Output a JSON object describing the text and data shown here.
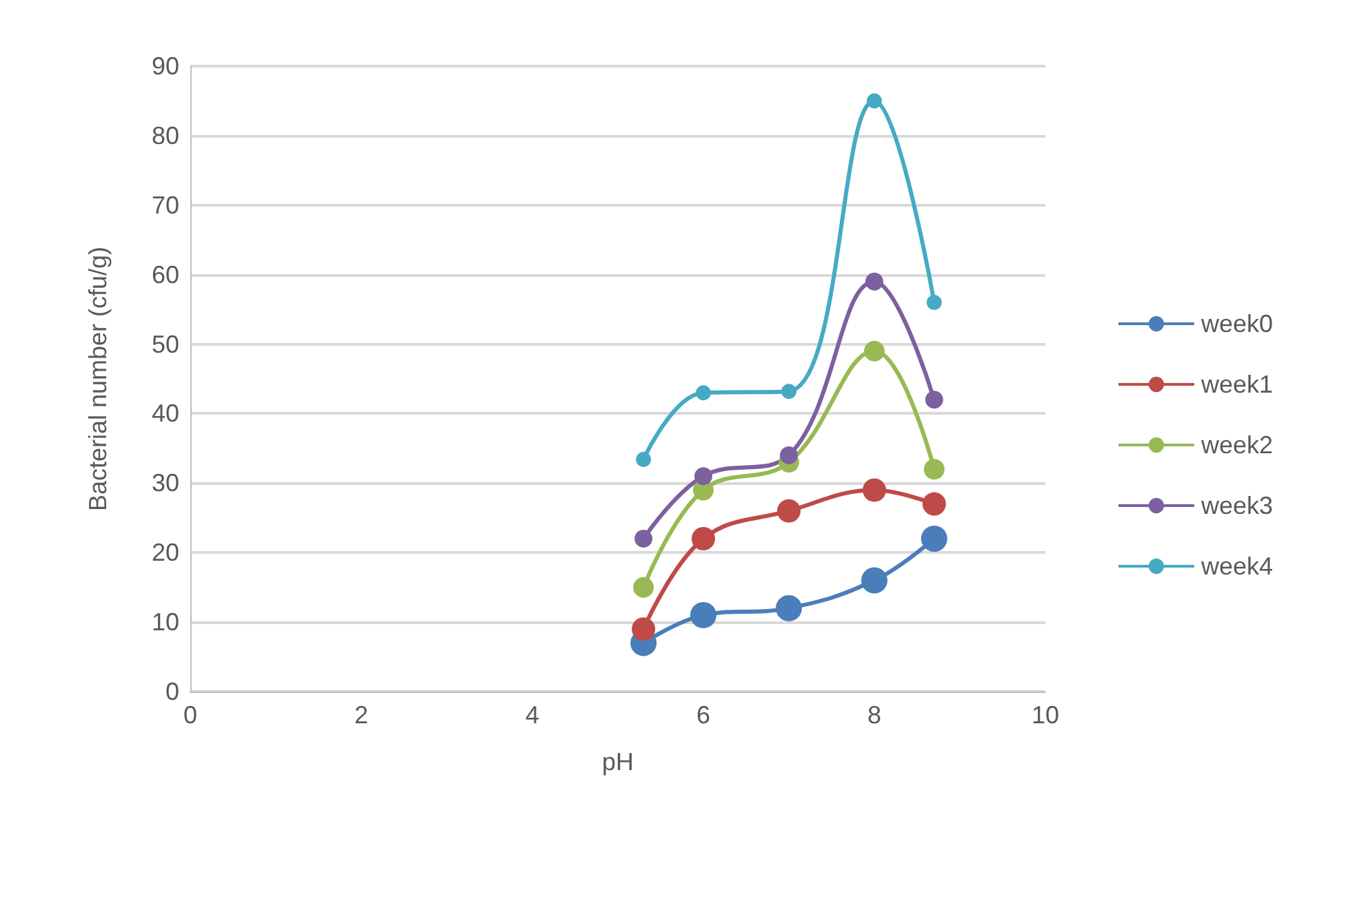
{
  "chart_data": {
    "type": "line",
    "xlabel": "pH",
    "ylabel": "Bacterial number (cfu/g)",
    "x": [
      5.3,
      6,
      7,
      8,
      8.7
    ],
    "series": [
      {
        "name": "week0",
        "color": "#4a7ebb",
        "values": [
          7,
          11,
          12,
          16,
          22
        ]
      },
      {
        "name": "week1",
        "color": "#be4b48",
        "values": [
          9,
          22,
          26,
          29,
          27
        ]
      },
      {
        "name": "week2",
        "color": "#98b954",
        "values": [
          15,
          29,
          33,
          49,
          32
        ]
      },
      {
        "name": "week3",
        "color": "#7d60a0",
        "values": [
          22,
          31,
          34,
          59,
          42
        ]
      },
      {
        "name": "week4",
        "color": "#46aac5",
        "values": [
          33.4,
          43,
          43.2,
          85,
          56
        ]
      }
    ],
    "xlim": [
      0,
      10
    ],
    "xticks": [
      0,
      2,
      4,
      6,
      8,
      10
    ],
    "ylim": [
      0,
      90
    ],
    "yticks": [
      0,
      10,
      20,
      30,
      40,
      50,
      60,
      70,
      80,
      90
    ],
    "grid": "y",
    "legend": "right",
    "marker": "circle"
  }
}
